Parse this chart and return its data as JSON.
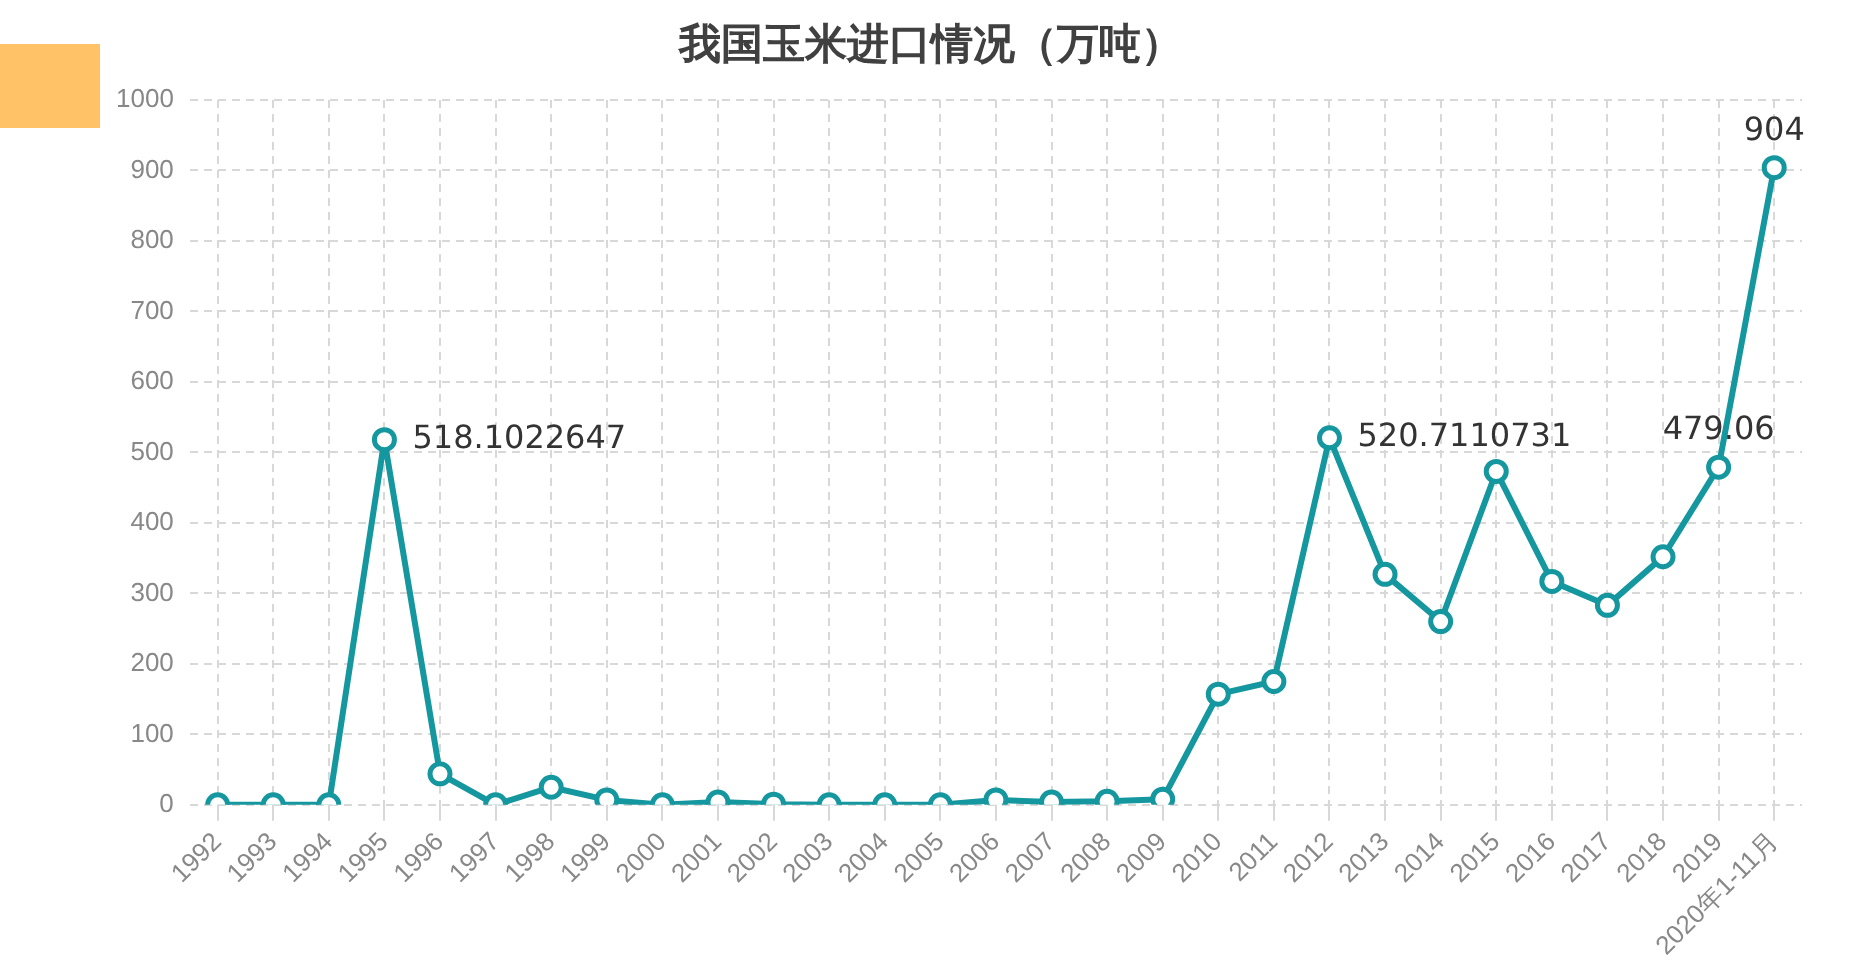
{
  "chart_data": {
    "type": "line",
    "title": "我国玉米进口情况（万吨）",
    "categories": [
      "1992",
      "1993",
      "1994",
      "1995",
      "1996",
      "1997",
      "1998",
      "1999",
      "2000",
      "2001",
      "2002",
      "2003",
      "2004",
      "2005",
      "2006",
      "2007",
      "2008",
      "2009",
      "2010",
      "2011",
      "2012",
      "2013",
      "2014",
      "2015",
      "2016",
      "2017",
      "2018",
      "2019",
      "2020年1-11月"
    ],
    "series": [
      {
        "color": "#14979e",
        "values": [
          0,
          0,
          0,
          518.1022647,
          44,
          0,
          25,
          7,
          0,
          4,
          1,
          0,
          0,
          0,
          7,
          4,
          5,
          8,
          157,
          175,
          520.7110731,
          327,
          260,
          473,
          317,
          283,
          352,
          479.06,
          904
        ],
        "value_labels": [
          null,
          null,
          null,
          "518.1022647",
          null,
          null,
          null,
          null,
          null,
          null,
          null,
          null,
          null,
          null,
          null,
          null,
          null,
          null,
          null,
          null,
          "520.7110731",
          null,
          null,
          null,
          null,
          null,
          null,
          "479.06",
          "904"
        ]
      }
    ],
    "ylim": [
      0,
      1000
    ],
    "yticks": [
      0,
      100,
      200,
      300,
      400,
      500,
      600,
      700,
      800,
      900,
      1000
    ],
    "grid": true,
    "legend": false,
    "marker": "circle",
    "line_style": "solid"
  }
}
